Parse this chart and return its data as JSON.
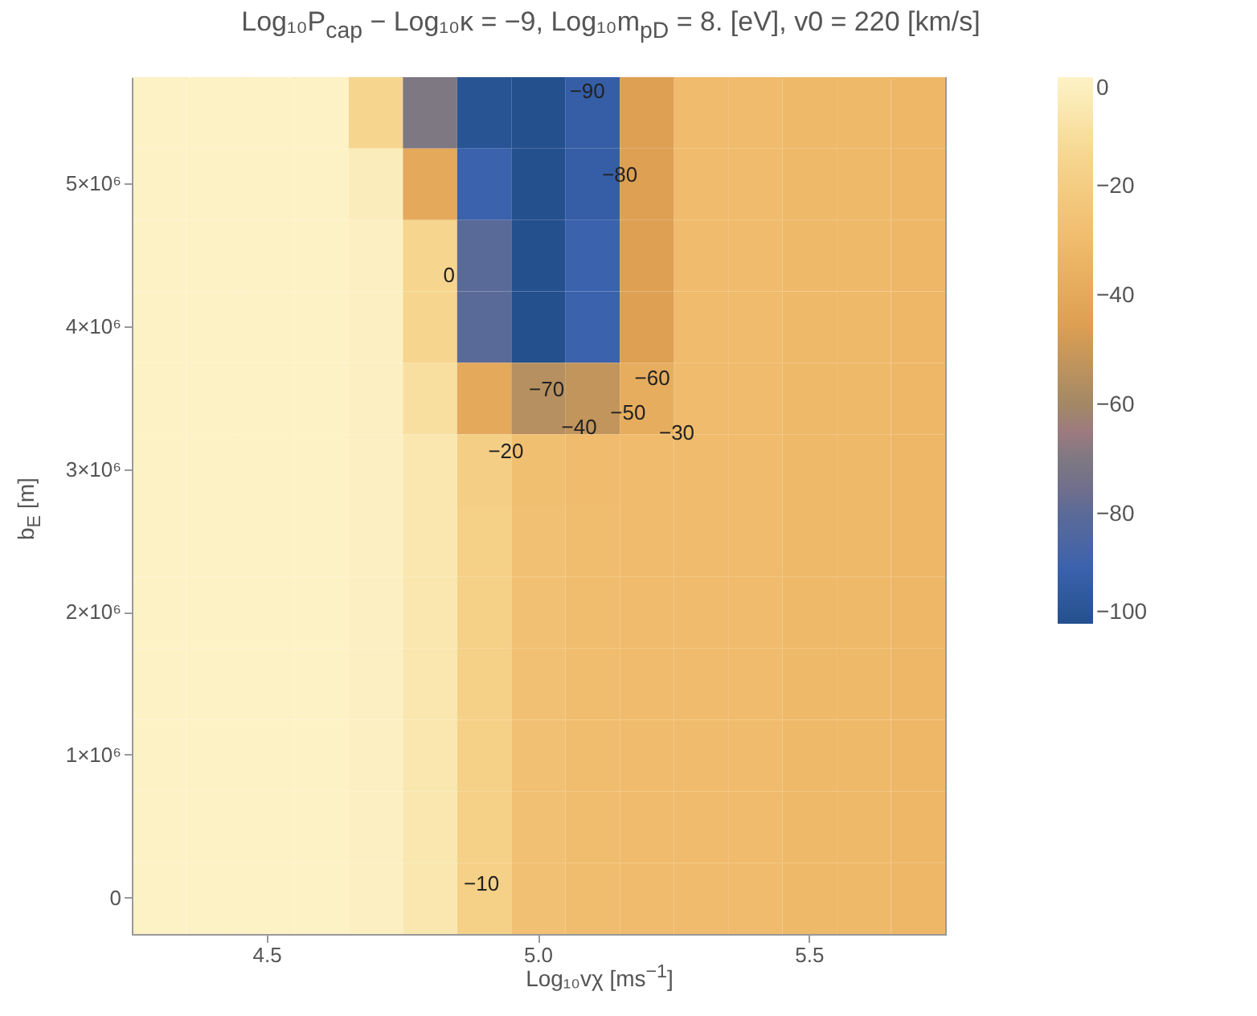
{
  "chart_data": {
    "type": "heatmap",
    "title": "Log₁₀P$_{cap}$ − Log₁₀κ = −9, Log₁₀m$_{pD}$ = 8. [eV], v0 = 220 [km/s]",
    "xlabel": "Log₁₀vχ [ms$^{−1}$]",
    "ylabel": "b$_{E}$ [m]",
    "categories": [
      null,
      null,
      "4.5",
      null,
      null,
      null,
      null,
      "5.0",
      null,
      null,
      null,
      null,
      "5.5",
      null,
      null
    ],
    "y_categories": [
      null,
      "5×10⁶",
      null,
      "4×10⁶",
      null,
      "3×10⁶",
      null,
      "2×10⁶",
      null,
      "1×10⁶",
      null,
      "0"
    ],
    "clim": [
      -100,
      0
    ],
    "cticks": [
      0,
      -20,
      -40,
      -60,
      -80,
      -100
    ],
    "cells": [
      [
        0,
        0,
        0,
        0,
        -15,
        -70,
        -98,
        -100,
        -92,
        -45,
        -30,
        -30,
        -31,
        -31,
        -32
      ],
      [
        0,
        0,
        0,
        0,
        -3,
        -40,
        -90,
        -100,
        -92,
        -45,
        -30,
        -30,
        -31,
        -31,
        -32
      ],
      [
        0,
        0,
        0,
        0,
        -1,
        -15,
        -80,
        -100,
        -90,
        -45,
        -30,
        -30,
        -31,
        -31,
        -32
      ],
      [
        0,
        0,
        0,
        0,
        -1,
        -15,
        -80,
        -100,
        -90,
        -45,
        -30,
        -30,
        -31,
        -31,
        -32
      ],
      [
        0,
        0,
        0,
        0,
        -1,
        -10,
        -40,
        -55,
        -52,
        -38,
        -30,
        -30,
        -31,
        -31,
        -32
      ],
      [
        0,
        0,
        0,
        0,
        -1,
        -6,
        -19,
        -28,
        -30,
        -30,
        -30,
        -30,
        -31,
        -31,
        -32
      ],
      [
        0,
        0,
        0,
        0,
        -1,
        -6,
        -18,
        -27,
        -29,
        -30,
        -30,
        -30,
        -31,
        -31,
        -32
      ],
      [
        0,
        0,
        0,
        0,
        -1,
        -6,
        -18,
        -27,
        -29,
        -30,
        -30,
        -30,
        -31,
        -31,
        -32
      ],
      [
        0,
        0,
        0,
        0,
        -1,
        -6,
        -18,
        -27,
        -29,
        -30,
        -30,
        -30,
        -31,
        -31,
        -32
      ],
      [
        0,
        0,
        0,
        0,
        -1,
        -6,
        -18,
        -27,
        -29,
        -30,
        -30,
        -30,
        -31,
        -31,
        -32
      ],
      [
        0,
        0,
        0,
        0,
        -1,
        -6,
        -18,
        -27,
        -29,
        -30,
        -30,
        -30,
        -31,
        -31,
        -32
      ],
      [
        0,
        0,
        0,
        0,
        -1,
        -6,
        -18,
        -27,
        -29,
        -30,
        -30,
        -30,
        -31,
        -31,
        -32
      ]
    ],
    "annotations": [
      "−90",
      "−80",
      "0",
      "−70",
      "−60",
      "−50",
      "−40",
      "−30",
      "−20",
      "−10"
    ]
  }
}
